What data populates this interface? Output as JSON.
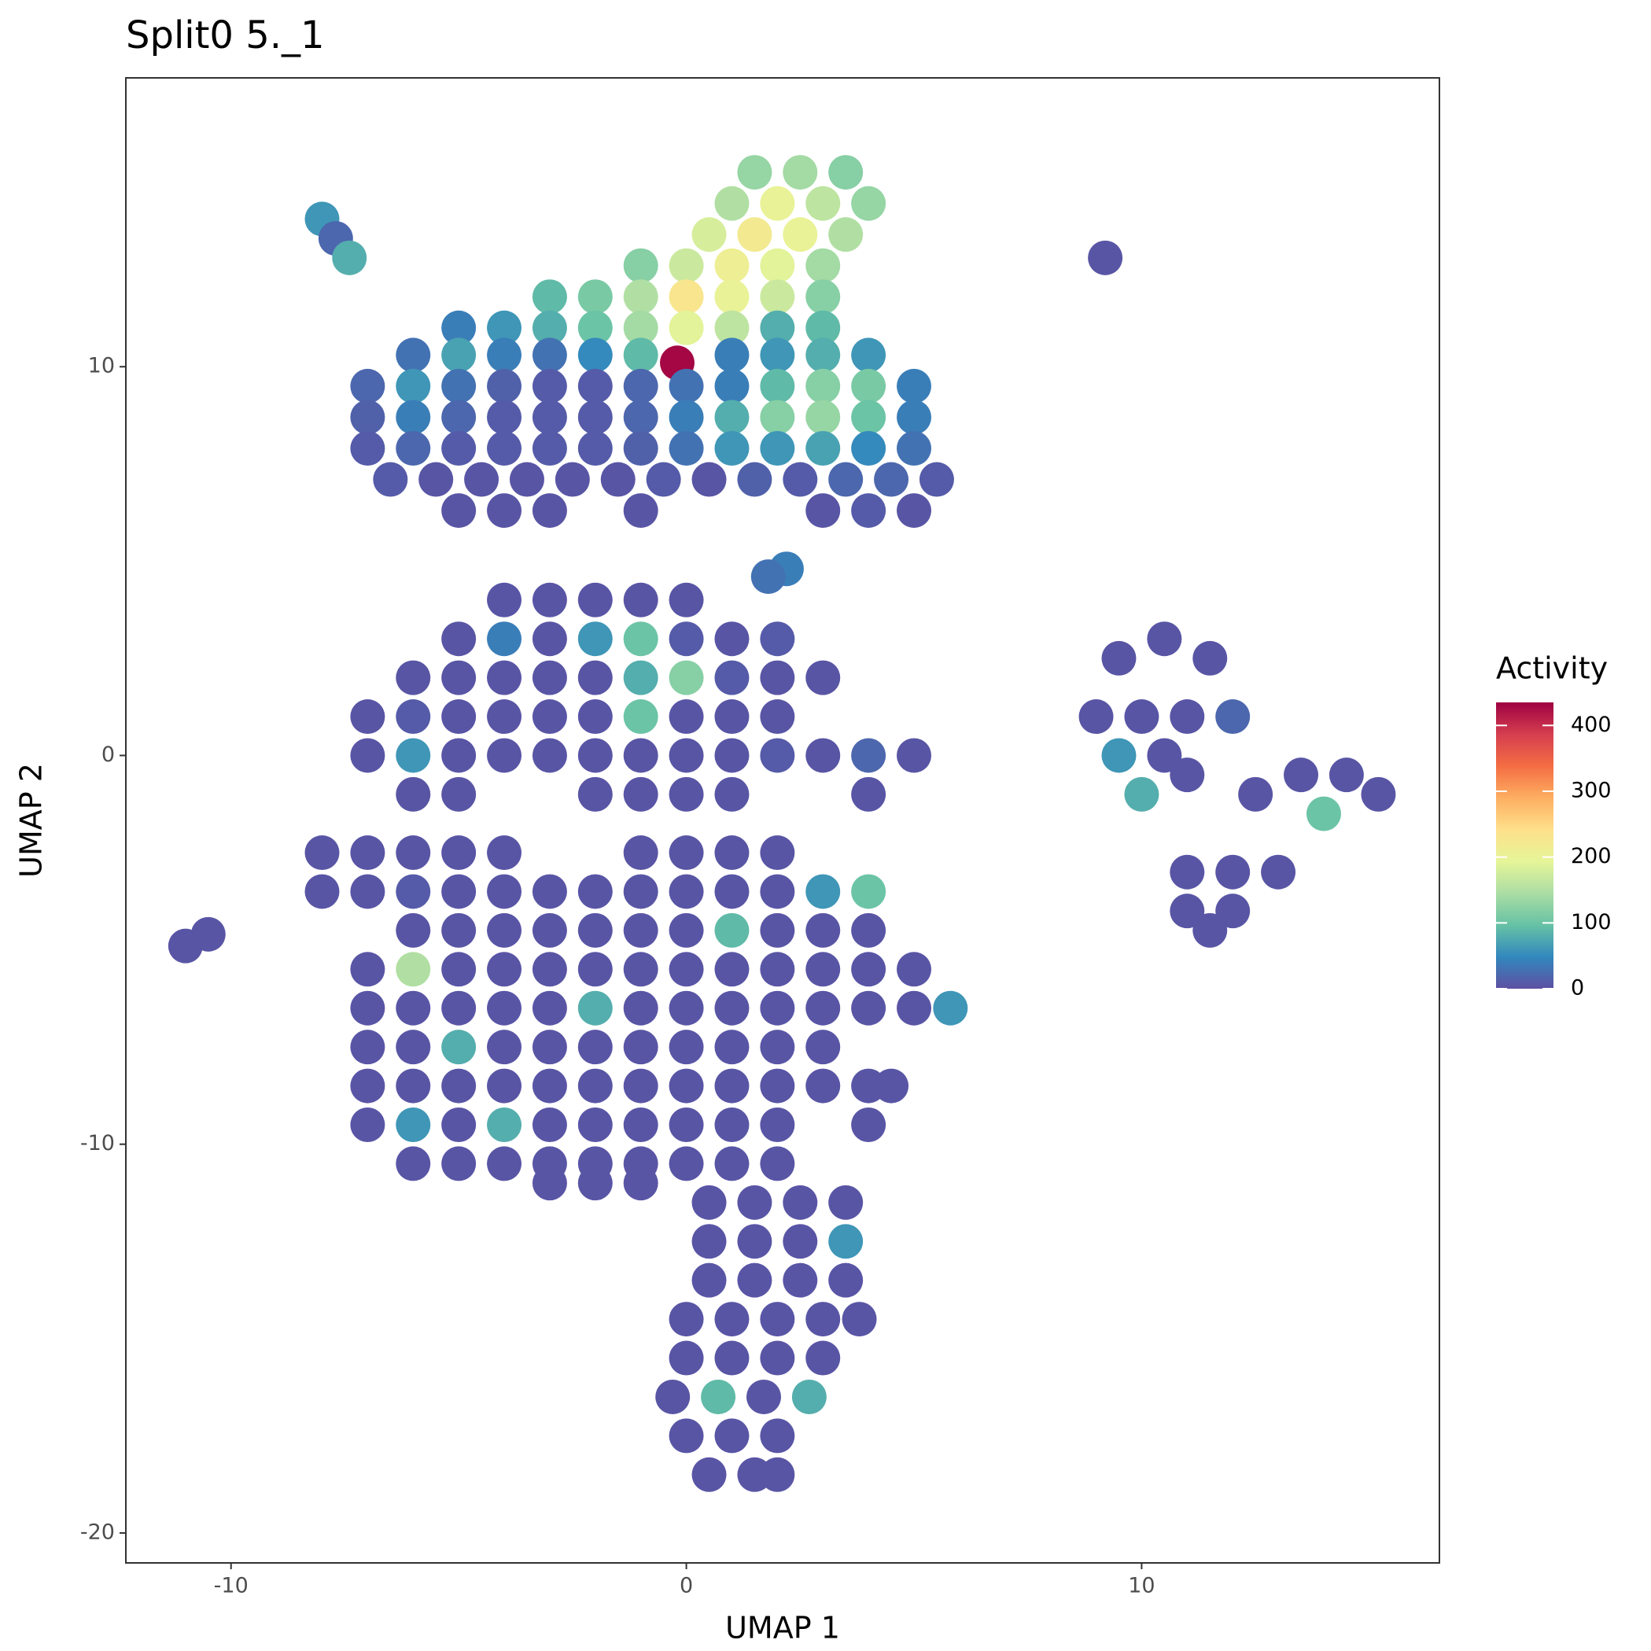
{
  "chart_data": {
    "type": "scatter",
    "title": "Split0 5._1",
    "x_label": "UMAP 1",
    "y_label": "UMAP 2",
    "x": [
      1.5,
      2.5,
      3.5,
      1,
      2,
      3,
      4,
      0.5,
      1.5,
      2.5,
      3.5,
      -1,
      0,
      1,
      2,
      3,
      -3,
      -2,
      -1,
      0,
      1,
      2,
      3,
      -5,
      -4,
      -3,
      -2,
      -1,
      0,
      1,
      2,
      3,
      -6,
      -5,
      -4,
      -3,
      -2,
      -1,
      -0.2,
      1,
      2,
      3,
      4,
      -7,
      -6,
      -5,
      -4,
      -3,
      -2,
      -1,
      0,
      1,
      2,
      3,
      4,
      5,
      -7,
      -6,
      -5,
      -4,
      -3,
      -2,
      -1,
      0,
      1,
      2,
      3,
      4,
      5,
      -7,
      -6,
      -5,
      -4,
      -3,
      -2,
      -1,
      0,
      1,
      2,
      3,
      4,
      5,
      -6.5,
      -5.5,
      -4.5,
      -3.5,
      -2.5,
      -1.5,
      -0.5,
      0.5,
      1.5,
      2.5,
      3.5,
      4.5,
      5.5,
      -5,
      -4,
      -3,
      -1,
      3,
      4,
      5,
      2.2,
      1.8,
      -4,
      -3,
      -2,
      -1,
      0,
      -5,
      -4,
      -3,
      -2,
      -1,
      0,
      1,
      2,
      -6,
      -5,
      -4,
      -3,
      -2,
      -1,
      0,
      1,
      2,
      3,
      -7,
      -6,
      -5,
      -4,
      -3,
      -2,
      -1,
      0,
      1,
      2,
      -7,
      -6,
      -5,
      -4,
      -3,
      -2,
      -1,
      0,
      1,
      -6,
      -5,
      -2,
      -1,
      0,
      1,
      2,
      3,
      4,
      5,
      4,
      -8,
      -7,
      -6,
      -5,
      -4,
      -1,
      0,
      1,
      2,
      -8,
      -7,
      -6,
      -5,
      -4,
      -3,
      -2,
      -1,
      0,
      1,
      2,
      3,
      4,
      -6,
      -5,
      -4,
      -3,
      -2,
      -1,
      0,
      1,
      2,
      3,
      4,
      -7,
      -6,
      -5,
      -4,
      -3,
      -2,
      -1,
      0,
      1,
      2,
      3,
      4,
      5,
      -7,
      -6,
      -5,
      -4,
      -3,
      -2,
      -1,
      0,
      1,
      2,
      3,
      4,
      5,
      5.8,
      -7,
      -6,
      -5,
      -4,
      -3,
      -2,
      -1,
      0,
      1,
      2,
      3,
      -7,
      -6,
      -5,
      -4,
      -3,
      -2,
      -1,
      0,
      1,
      2,
      3,
      4,
      4.5,
      -7,
      -6,
      -5,
      -4,
      -3,
      -2,
      -1,
      0,
      1,
      2,
      4,
      -6,
      -5,
      -4,
      -3,
      -2,
      -1,
      0,
      -3,
      -2,
      -1,
      1,
      2,
      0.5,
      1.5,
      2.5,
      3.5,
      0.5,
      1.5,
      2.5,
      3.5,
      0.5,
      1.5,
      2.5,
      3.5,
      0,
      1,
      2,
      3,
      3.8,
      0,
      1,
      2,
      3,
      -0.3,
      0.7,
      1.7,
      2.7,
      0,
      1,
      2,
      0.5,
      1.5,
      2,
      9.5,
      10.5,
      11.5,
      9,
      10,
      11,
      12,
      9.5,
      10.5,
      11,
      10,
      12.5,
      13.5,
      14.5,
      15.2,
      14,
      11,
      12,
      11,
      12,
      11.5,
      13,
      -8,
      -7.7,
      -7.4,
      9.2,
      -11,
      -10.5
    ],
    "values": [
      15,
      15,
      15,
      14.2,
      14.2,
      14.2,
      14.2,
      13.4,
      13.4,
      13.4,
      13.4,
      12.6,
      12.6,
      12.6,
      12.6,
      12.6,
      11.8,
      11.8,
      11.8,
      11.8,
      11.8,
      11.8,
      11.8,
      11,
      11,
      11,
      11,
      11,
      11,
      11,
      11,
      11,
      10.3,
      10.3,
      10.3,
      10.3,
      10.3,
      10.3,
      10.1,
      10.3,
      10.3,
      10.3,
      10.3,
      9.5,
      9.5,
      9.5,
      9.5,
      9.5,
      9.5,
      9.5,
      9.5,
      9.5,
      9.5,
      9.5,
      9.5,
      9.5,
      8.7,
      8.7,
      8.7,
      8.7,
      8.7,
      8.7,
      8.7,
      8.7,
      8.7,
      8.7,
      8.7,
      8.7,
      8.7,
      7.9,
      7.9,
      7.9,
      7.9,
      7.9,
      7.9,
      7.9,
      7.9,
      7.9,
      7.9,
      7.9,
      7.9,
      7.9,
      7.1,
      7.1,
      7.1,
      7.1,
      7.1,
      7.1,
      7.1,
      7.1,
      7.1,
      7.1,
      7.1,
      7.1,
      7.1,
      6.3,
      6.3,
      6.3,
      6.3,
      6.3,
      6.3,
      6.3,
      4.8,
      4.6,
      4,
      4,
      4,
      4,
      4,
      3,
      3,
      3,
      3,
      3,
      3,
      3,
      3,
      2,
      2,
      2,
      2,
      2,
      2,
      2,
      2,
      2,
      2,
      1,
      1,
      1,
      1,
      1,
      1,
      1,
      1,
      1,
      1,
      0,
      0,
      0,
      0,
      0,
      0,
      0,
      0,
      0,
      -1,
      -1,
      -1,
      -1,
      -1,
      -1,
      0,
      0,
      0,
      0,
      -1,
      -2.5,
      -2.5,
      -2.5,
      -2.5,
      -2.5,
      -2.5,
      -2.5,
      -2.5,
      -2.5,
      -3.5,
      -3.5,
      -3.5,
      -3.5,
      -3.5,
      -3.5,
      -3.5,
      -3.5,
      -3.5,
      -3.5,
      -3.5,
      -3.5,
      -3.5,
      -4.5,
      -4.5,
      -4.5,
      -4.5,
      -4.5,
      -4.5,
      -4.5,
      -4.5,
      -4.5,
      -4.5,
      -4.5,
      -5.5,
      -5.5,
      -5.5,
      -5.5,
      -5.5,
      -5.5,
      -5.5,
      -5.5,
      -5.5,
      -5.5,
      -5.5,
      -5.5,
      -5.5,
      -6.5,
      -6.5,
      -6.5,
      -6.5,
      -6.5,
      -6.5,
      -6.5,
      -6.5,
      -6.5,
      -6.5,
      -6.5,
      -6.5,
      -6.5,
      -6.5,
      -7.5,
      -7.5,
      -7.5,
      -7.5,
      -7.5,
      -7.5,
      -7.5,
      -7.5,
      -7.5,
      -7.5,
      -7.5,
      -8.5,
      -8.5,
      -8.5,
      -8.5,
      -8.5,
      -8.5,
      -8.5,
      -8.5,
      -8.5,
      -8.5,
      -8.5,
      -8.5,
      -8.5,
      -9.5,
      -9.5,
      -9.5,
      -9.5,
      -9.5,
      -9.5,
      -9.5,
      -9.5,
      -9.5,
      -9.5,
      -9.5,
      -10.5,
      -10.5,
      -10.5,
      -10.5,
      -10.5,
      -10.5,
      -10.5,
      -11,
      -11,
      -11,
      -10.5,
      -10.5,
      -11.5,
      -11.5,
      -11.5,
      -11.5,
      -12.5,
      -12.5,
      -12.5,
      -12.5,
      -13.5,
      -13.5,
      -13.5,
      -13.5,
      -14.5,
      -14.5,
      -14.5,
      -14.5,
      -14.5,
      -15.5,
      -15.5,
      -15.5,
      -15.5,
      -16.5,
      -16.5,
      -16.5,
      -16.5,
      -17.5,
      -17.5,
      -17.5,
      -18.5,
      -18.5,
      -18.5,
      2.5,
      3,
      2.5,
      1,
      1,
      1,
      1,
      0,
      0,
      -0.5,
      -1,
      -1,
      -0.5,
      -0.5,
      -1,
      -1.5,
      -3,
      -3,
      -4,
      -4,
      -4.5,
      -3,
      13.8,
      13.3,
      12.8,
      12.8,
      -4.9,
      -4.6
    ],
    "activity": [
      130,
      140,
      120,
      150,
      200,
      160,
      130,
      180,
      220,
      200,
      150,
      120,
      170,
      210,
      190,
      140,
      90,
      110,
      150,
      230,
      200,
      170,
      120,
      40,
      60,
      80,
      100,
      140,
      190,
      160,
      80,
      90,
      30,
      70,
      40,
      30,
      50,
      90,
      430,
      40,
      60,
      80,
      60,
      20,
      60,
      30,
      15,
      10,
      10,
      20,
      30,
      40,
      90,
      120,
      110,
      40,
      15,
      40,
      20,
      10,
      10,
      10,
      20,
      40,
      80,
      120,
      130,
      100,
      40,
      10,
      20,
      10,
      10,
      10,
      10,
      15,
      30,
      60,
      60,
      70,
      50,
      30,
      10,
      5,
      5,
      5,
      5,
      5,
      10,
      5,
      15,
      10,
      20,
      20,
      10,
      5,
      5,
      5,
      5,
      5,
      10,
      5,
      40,
      30,
      5,
      5,
      5,
      5,
      5,
      5,
      40,
      5,
      60,
      100,
      10,
      5,
      10,
      5,
      5,
      5,
      5,
      5,
      80,
      120,
      10,
      5,
      5,
      5,
      10,
      5,
      5,
      5,
      5,
      100,
      5,
      5,
      5,
      5,
      60,
      5,
      5,
      5,
      5,
      5,
      5,
      5,
      5,
      5,
      5,
      5,
      5,
      5,
      10,
      5,
      20,
      5,
      5,
      5,
      5,
      5,
      5,
      5,
      5,
      5,
      5,
      5,
      5,
      5,
      10,
      5,
      5,
      5,
      5,
      5,
      5,
      5,
      5,
      60,
      100,
      5,
      5,
      5,
      5,
      5,
      5,
      5,
      90,
      5,
      5,
      5,
      5,
      150,
      5,
      5,
      5,
      5,
      5,
      5,
      5,
      5,
      5,
      5,
      5,
      5,
      5,
      5,
      5,
      5,
      80,
      5,
      5,
      5,
      5,
      5,
      5,
      5,
      60,
      5,
      5,
      80,
      5,
      5,
      5,
      5,
      5,
      5,
      5,
      5,
      5,
      5,
      5,
      5,
      5,
      5,
      5,
      5,
      5,
      5,
      5,
      5,
      5,
      5,
      60,
      5,
      80,
      5,
      5,
      5,
      5,
      5,
      5,
      5,
      5,
      5,
      5,
      5,
      5,
      5,
      5,
      5,
      5,
      5,
      5,
      5,
      5,
      5,
      5,
      5,
      5,
      5,
      5,
      60,
      5,
      5,
      5,
      5,
      5,
      5,
      5,
      5,
      5,
      5,
      5,
      5,
      5,
      5,
      90,
      5,
      80,
      5,
      5,
      5,
      5,
      5,
      5,
      5,
      5,
      5,
      5,
      5,
      5,
      20,
      60,
      5,
      5,
      80,
      5,
      5,
      5,
      5,
      100,
      5,
      5,
      5,
      5,
      5,
      5,
      60,
      20,
      80,
      5,
      5,
      5
    ],
    "xlim": [
      -12.31,
      16.54
    ],
    "ylim": [
      -20.77,
      17.43
    ],
    "xticks": [
      -10,
      0,
      10
    ],
    "yticks": [
      -20,
      -10,
      0,
      10
    ],
    "grid": false,
    "colorbar_title": "Activity",
    "colorlim": [
      0,
      435
    ],
    "colorbar_ticks": [
      0,
      100,
      200,
      300,
      400
    ],
    "colorscale": [
      "#5E4FA2",
      "#3288BD",
      "#66C2A5",
      "#ABDDA4",
      "#E6F598",
      "#FEE08B",
      "#FDAE61",
      "#F46D43",
      "#D53E4F",
      "#9E0142"
    ]
  }
}
